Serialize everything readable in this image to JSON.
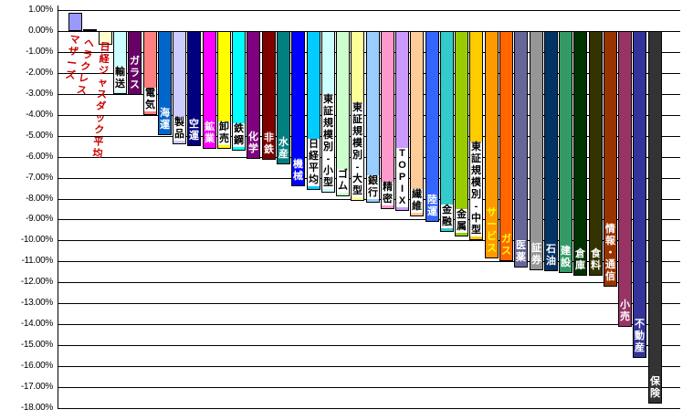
{
  "chart_data": {
    "type": "bar",
    "title": "",
    "xlabel": "",
    "ylabel": "",
    "unit": "%",
    "ylim": [
      -18,
      1
    ],
    "gridline_step": 1,
    "grid": true,
    "legend": false,
    "ytick_labels": [
      "1.00%",
      "0.00%",
      "-1.00%",
      "-2.00%",
      "-3.00%",
      "-4.00%",
      "-5.00%",
      "-6.00%",
      "-7.00%",
      "-8.00%",
      "-9.00%",
      "-10.00%",
      "-11.00%",
      "-12.00%",
      "-13.00%",
      "-14.00%",
      "-15.00%",
      "-16.00%",
      "-17.00%",
      "-18.00%"
    ],
    "categories": [
      "マザーズ",
      "ヘラクレス",
      "日経ジャスダック平均",
      "輸送",
      "ガラス",
      "電気",
      "海運",
      "製品",
      "空運",
      "鉱業",
      "卸売",
      "鉄鋼",
      "化学",
      "非鉄",
      "水産",
      "機械",
      "日経平均",
      "東証規模別-小型",
      "ゴム",
      "東証規模別-大型",
      "銀行",
      "精密",
      "TOPIX",
      "繊維",
      "陸運",
      "金融",
      "金属",
      "東証規模別-中型",
      "サービス",
      "ガス",
      "医薬",
      "証券",
      "石油",
      "建設",
      "倉庫",
      "食料",
      "情報・通信",
      "小売",
      "不動産",
      "保険"
    ],
    "values": [
      0.85,
      0.1,
      -0.65,
      -3.0,
      -3.05,
      -4.0,
      -4.95,
      -5.4,
      -5.5,
      -5.6,
      -5.6,
      -5.7,
      -6.1,
      -6.15,
      -6.35,
      -7.4,
      -7.6,
      -7.7,
      -7.9,
      -8.1,
      -8.2,
      -8.5,
      -8.6,
      -8.85,
      -9.1,
      -9.6,
      -9.8,
      -10.0,
      -10.85,
      -11.0,
      -11.3,
      -11.4,
      -11.45,
      -11.55,
      -11.7,
      -11.7,
      -12.2,
      -14.1,
      -15.6,
      -17.8
    ],
    "bar_colors": [
      "#9999FF",
      "#993366",
      "#FFFFCC",
      "#CCFFFF",
      "#660066",
      "#FF8080",
      "#0066CC",
      "#CCCCFF",
      "#000080",
      "#FF00FF",
      "#FFFF00",
      "#00FFFF",
      "#800080",
      "#800000",
      "#008080",
      "#0000FF",
      "#00CCFF",
      "#CCFFFF",
      "#CCFFCC",
      "#FFFF99",
      "#99CCFF",
      "#FF99CC",
      "#CC99FF",
      "#FFCC99",
      "#3366FF",
      "#33CCCC",
      "#99CC00",
      "#FFCC00",
      "#FF9900",
      "#FF6600",
      "#666699",
      "#969696",
      "#003366",
      "#339966",
      "#003300",
      "#333300",
      "#993300",
      "#993366",
      "#333399",
      "#333333"
    ],
    "label_text_colors": [
      "#CC0000",
      "#CC0000",
      "#CC0000",
      "#000000",
      "#FFFFFF",
      "#000000",
      "#FFFFFF",
      "#000000",
      "#FFFFFF",
      "#FFFFFF",
      "#000000",
      "#000000",
      "#FFFFFF",
      "#FFFFFF",
      "#FFFFFF",
      "#FFFFFF",
      "#000000",
      "#000000",
      "#000000",
      "#000000",
      "#000000",
      "#000000",
      "#000000",
      "#000000",
      "#FFFFFF",
      "#000000",
      "#000000",
      "#000000",
      "#FFFF00",
      "#FFFF00",
      "#FFFFFF",
      "#FFFFFF",
      "#FFFFFF",
      "#FFFFFF",
      "#FFFFFF",
      "#FFFFFF",
      "#FFFFFF",
      "#FFFFFF",
      "#FFFFFF",
      "#FFFFFF"
    ],
    "label_placements": [
      "axis",
      "axis",
      "axis",
      "inside",
      "inside",
      "inside",
      "inside",
      "inside",
      "inside",
      "inside",
      "inside",
      "inside",
      "inside",
      "inside",
      "inside",
      "inside",
      "inside",
      "inside",
      "inside",
      "inside",
      "inside",
      "inside",
      "inside",
      "inside",
      "inside",
      "inside",
      "inside",
      "inside",
      "inside",
      "inside",
      "inside",
      "inside",
      "inside",
      "inside",
      "inside",
      "inside",
      "inside",
      "inside",
      "inside",
      "inside"
    ],
    "axis_label_rotations": [
      7,
      9,
      4
    ],
    "axis_label_tops": [
      38,
      42,
      46
    ],
    "colors": {
      "background": "#FFFFFF",
      "gridline": "#000000",
      "axis": "#000000",
      "axis_label_red": "#CC0000",
      "label_box": "#FFFFFF"
    }
  }
}
